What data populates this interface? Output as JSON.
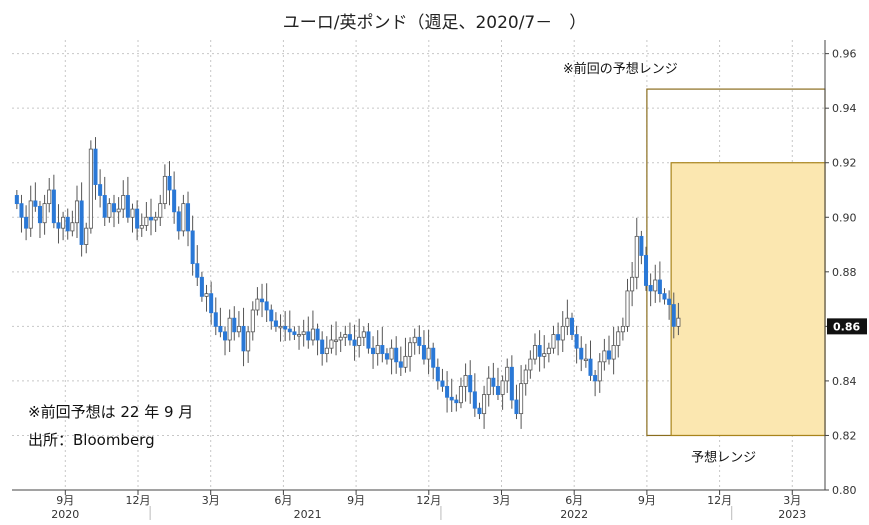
{
  "chart_data": {
    "type": "candlestick",
    "title": "ユーロ/英ポンド（週足、2020/7－　）",
    "y_ticks": [
      0.8,
      0.82,
      0.84,
      0.86,
      0.88,
      0.9,
      0.92,
      0.94,
      0.96
    ],
    "ylim": [
      0.8,
      0.965
    ],
    "last_price_label": "0.86",
    "last_price": 0.86,
    "x_ticks": [
      "9月",
      "12月",
      "3月",
      "6月",
      "9月",
      "12月",
      "3月",
      "6月",
      "9月",
      "12月",
      "3月"
    ],
    "x_tick_months": [
      "2020-09",
      "2020-12",
      "2021-03",
      "2021-06",
      "2021-09",
      "2021-12",
      "2022-03",
      "2022-06",
      "2022-09",
      "2022-12",
      "2023-03"
    ],
    "year_labels": [
      {
        "label": "2020",
        "month": "2020-09"
      },
      {
        "label": "2021",
        "month": "2021-07"
      },
      {
        "label": "2022",
        "month": "2022-06"
      },
      {
        "label": "2023",
        "month": "2023-03"
      }
    ],
    "xlim": [
      "2020-07",
      "2023-04"
    ],
    "close_series": [
      0.905,
      0.9,
      0.896,
      0.906,
      0.904,
      0.898,
      0.905,
      0.91,
      0.898,
      0.896,
      0.9,
      0.895,
      0.898,
      0.906,
      0.89,
      0.896,
      0.925,
      0.912,
      0.908,
      0.9,
      0.905,
      0.902,
      0.903,
      0.908,
      0.9,
      0.903,
      0.896,
      0.897,
      0.9,
      0.899,
      0.9,
      0.905,
      0.915,
      0.91,
      0.902,
      0.895,
      0.905,
      0.895,
      0.883,
      0.878,
      0.871,
      0.872,
      0.865,
      0.86,
      0.858,
      0.855,
      0.863,
      0.858,
      0.86,
      0.851,
      0.858,
      0.866,
      0.87,
      0.869,
      0.866,
      0.862,
      0.86,
      0.86,
      0.859,
      0.858,
      0.857,
      0.857,
      0.858,
      0.855,
      0.859,
      0.855,
      0.85,
      0.852,
      0.855,
      0.855,
      0.856,
      0.857,
      0.855,
      0.853,
      0.856,
      0.858,
      0.852,
      0.85,
      0.853,
      0.85,
      0.848,
      0.852,
      0.847,
      0.845,
      0.849,
      0.854,
      0.856,
      0.853,
      0.848,
      0.852,
      0.845,
      0.84,
      0.838,
      0.834,
      0.833,
      0.832,
      0.838,
      0.842,
      0.836,
      0.83,
      0.828,
      0.835,
      0.841,
      0.838,
      0.835,
      0.84,
      0.845,
      0.833,
      0.828,
      0.839,
      0.844,
      0.848,
      0.853,
      0.849,
      0.85,
      0.852,
      0.857,
      0.855,
      0.86,
      0.863,
      0.857,
      0.852,
      0.848,
      0.848,
      0.842,
      0.84,
      0.847,
      0.851,
      0.848,
      0.853,
      0.858,
      0.86,
      0.873,
      0.878,
      0.893,
      0.886,
      0.875,
      0.873,
      0.877,
      0.872,
      0.87,
      0.868,
      0.86,
      0.863
    ],
    "ranges": [
      {
        "label": "※前回の予想レンジ",
        "low": 0.82,
        "high": 0.947,
        "start": "2022-09",
        "end": "2023-04",
        "fill": "none",
        "stroke": "#8a6d1e"
      },
      {
        "label": "予想レンジ",
        "low": 0.82,
        "high": 0.92,
        "start": "2022-10",
        "end": "2023-04",
        "fill": "#fbe7b0",
        "stroke": "#a8841c"
      }
    ],
    "annotations": [
      "※前回予想は 22 年 9 月",
      "出所：Bloomberg"
    ],
    "grid": true,
    "colors": {
      "up": "#ffffff",
      "down": "#2a78d6",
      "outline": "#555555",
      "grid": "#c7c7c7",
      "range_fill": "#fbe7b0",
      "range_edge": "#a8841c"
    }
  }
}
